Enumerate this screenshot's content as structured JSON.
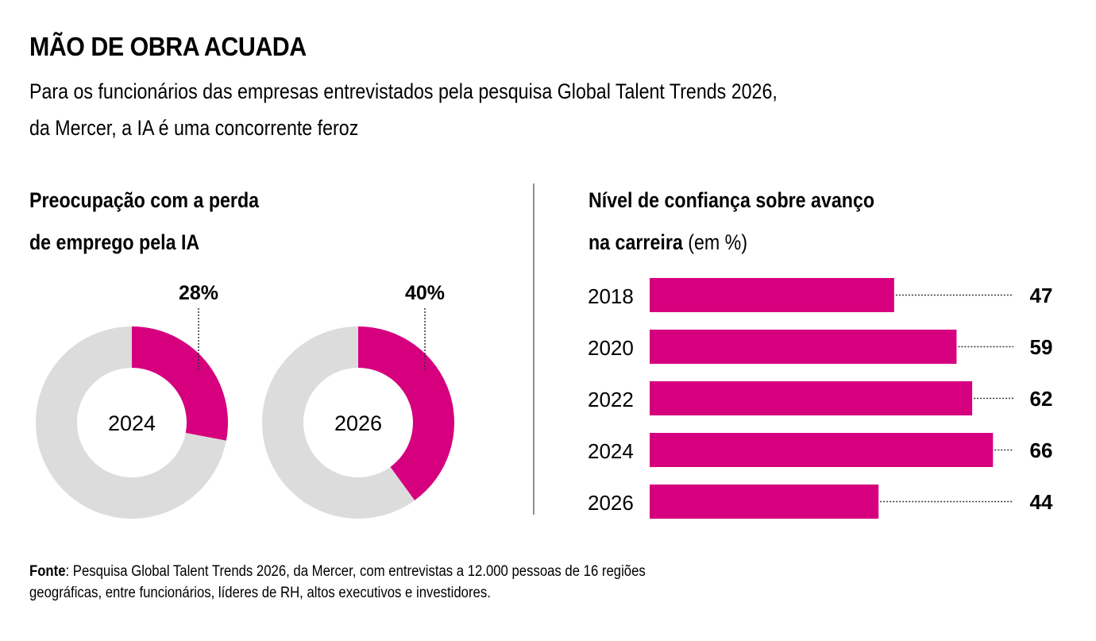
{
  "header": {
    "title": "MÃO DE OBRA ACUADA",
    "subtitle_line1": "Para os funcionários das empresas entrevistados pela pesquisa Global Talent Trends 2026,",
    "subtitle_line2": "da Mercer, a IA é uma concorrente feroz"
  },
  "colors": {
    "accent": "#d6007e",
    "track": "#dcdcdd",
    "divider": "#8f8f8f",
    "text": "#000000"
  },
  "chart_data": [
    {
      "type": "pie",
      "variant": "donut",
      "title_line1": "Preocupação com a perda",
      "title_line2": "de emprego pela IA",
      "unit": "%",
      "items": [
        {
          "center_label": "2024",
          "value": 28,
          "label": "28%"
        },
        {
          "center_label": "2026",
          "value": 40,
          "label": "40%"
        }
      ]
    },
    {
      "type": "bar",
      "orientation": "horizontal",
      "title_bold": "Nível de confiança sobre avanço",
      "title_bold_line2": "na carreira",
      "title_unit": "(em %)",
      "categories": [
        "2018",
        "2020",
        "2022",
        "2024",
        "2026"
      ],
      "values": [
        47,
        59,
        62,
        66,
        44
      ],
      "value_labels": [
        "47",
        "59",
        "62",
        "66",
        "44"
      ],
      "xlim": [
        0,
        100
      ],
      "grid": false,
      "legend": "none"
    }
  ],
  "footer": {
    "source_label": "Fonte",
    "source_text_line1": ": Pesquisa Global Talent Trends 2026, da Mercer, com entrevistas a 12.000 pessoas de 16 regiões",
    "source_text_line2": "geográficas, entre funcionários, líderes de RH, altos executivos e investidores."
  }
}
